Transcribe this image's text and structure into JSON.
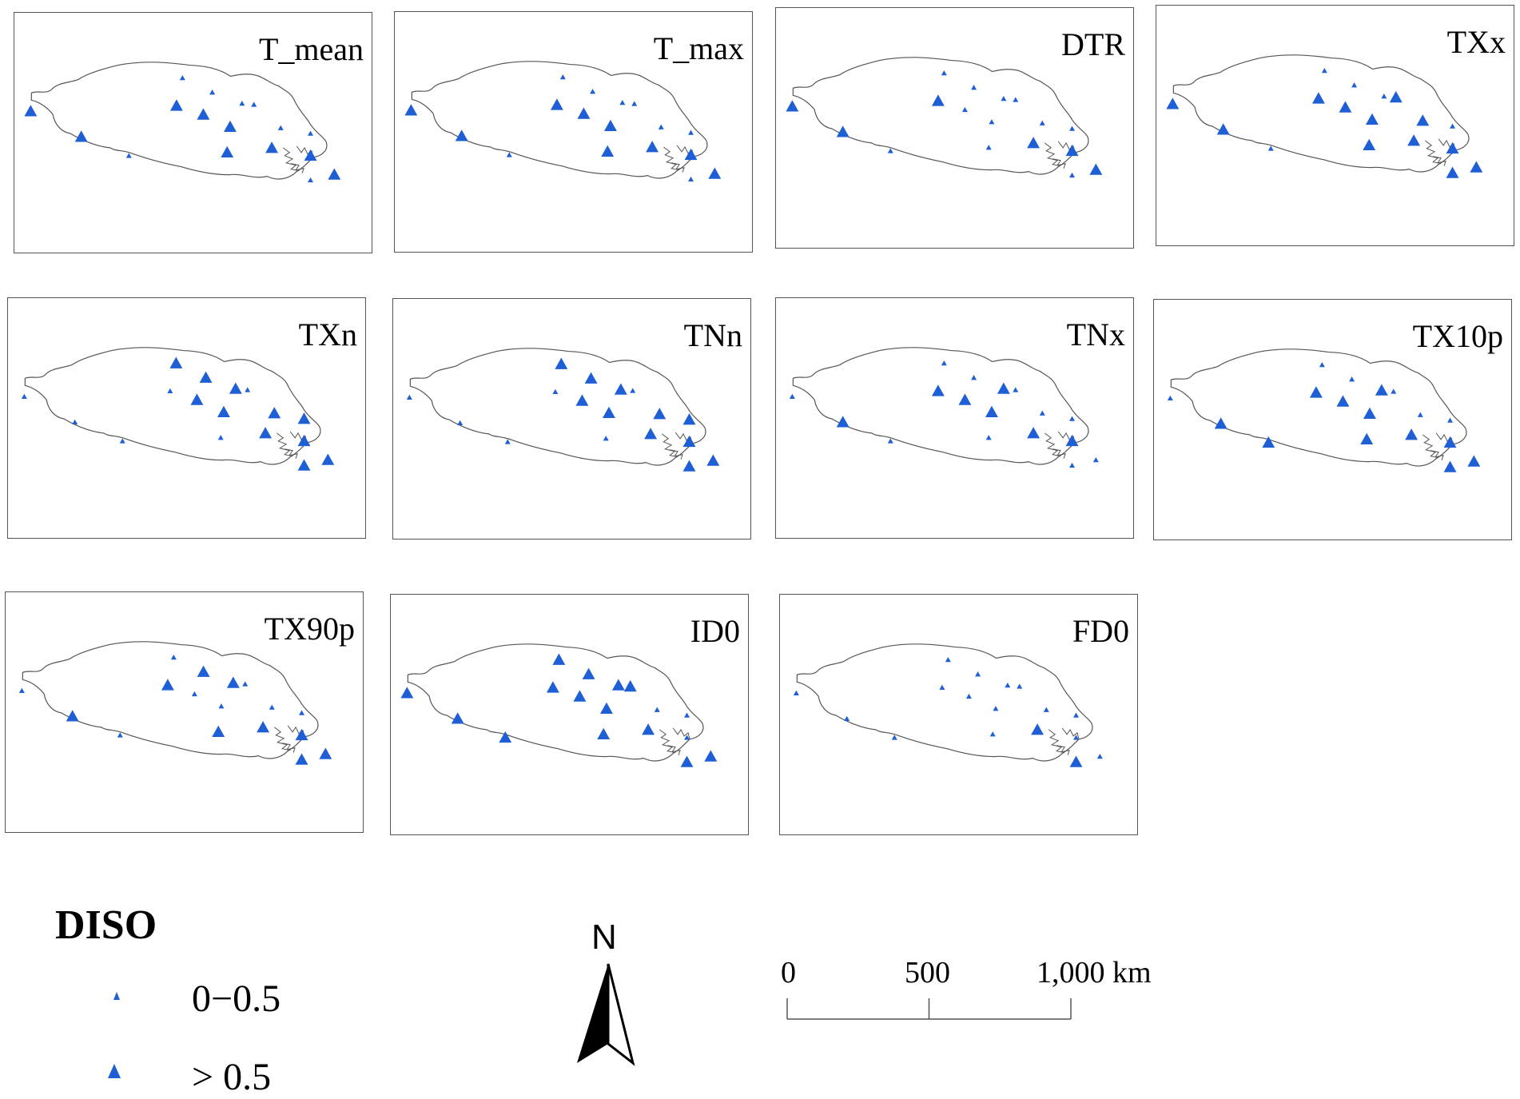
{
  "panels": [
    {
      "title": "T_mean",
      "stations": [
        {
          "lon": 0.0,
          "lat": 0.35,
          "diso": "high"
        },
        {
          "lon": 0.17,
          "lat": 0.58,
          "diso": "high"
        },
        {
          "lon": 0.33,
          "lat": 0.75,
          "diso": "low"
        },
        {
          "lon": 0.49,
          "lat": 0.3,
          "diso": "high"
        },
        {
          "lon": 0.51,
          "lat": 0.05,
          "diso": "low"
        },
        {
          "lon": 0.58,
          "lat": 0.38,
          "diso": "high"
        },
        {
          "lon": 0.61,
          "lat": 0.18,
          "diso": "low"
        },
        {
          "lon": 0.66,
          "lat": 0.72,
          "diso": "high"
        },
        {
          "lon": 0.67,
          "lat": 0.49,
          "diso": "high"
        },
        {
          "lon": 0.71,
          "lat": 0.28,
          "diso": "low"
        },
        {
          "lon": 0.75,
          "lat": 0.29,
          "diso": "low"
        },
        {
          "lon": 0.81,
          "lat": 0.68,
          "diso": "high"
        },
        {
          "lon": 0.84,
          "lat": 0.5,
          "diso": "low"
        },
        {
          "lon": 0.94,
          "lat": 0.55,
          "diso": "low"
        },
        {
          "lon": 0.94,
          "lat": 0.75,
          "diso": "high"
        },
        {
          "lon": 0.94,
          "lat": 0.97,
          "diso": "low"
        },
        {
          "lon": 1.02,
          "lat": 0.92,
          "diso": "high"
        }
      ]
    },
    {
      "title": "T_max",
      "stations": [
        {
          "lon": 0.0,
          "lat": 0.35,
          "diso": "high"
        },
        {
          "lon": 0.17,
          "lat": 0.58,
          "diso": "high"
        },
        {
          "lon": 0.33,
          "lat": 0.75,
          "diso": "low"
        },
        {
          "lon": 0.49,
          "lat": 0.3,
          "diso": "high"
        },
        {
          "lon": 0.51,
          "lat": 0.05,
          "diso": "low"
        },
        {
          "lon": 0.58,
          "lat": 0.38,
          "diso": "high"
        },
        {
          "lon": 0.61,
          "lat": 0.18,
          "diso": "low"
        },
        {
          "lon": 0.66,
          "lat": 0.72,
          "diso": "high"
        },
        {
          "lon": 0.67,
          "lat": 0.49,
          "diso": "high"
        },
        {
          "lon": 0.71,
          "lat": 0.28,
          "diso": "low"
        },
        {
          "lon": 0.75,
          "lat": 0.29,
          "diso": "low"
        },
        {
          "lon": 0.81,
          "lat": 0.68,
          "diso": "high"
        },
        {
          "lon": 0.84,
          "lat": 0.5,
          "diso": "low"
        },
        {
          "lon": 0.94,
          "lat": 0.55,
          "diso": "low"
        },
        {
          "lon": 0.94,
          "lat": 0.75,
          "diso": "high"
        },
        {
          "lon": 0.94,
          "lat": 0.97,
          "diso": "low"
        },
        {
          "lon": 1.02,
          "lat": 0.92,
          "diso": "high"
        }
      ]
    },
    {
      "title": "DTR",
      "stations": [
        {
          "lon": 0.0,
          "lat": 0.35,
          "diso": "high"
        },
        {
          "lon": 0.17,
          "lat": 0.58,
          "diso": "high"
        },
        {
          "lon": 0.33,
          "lat": 0.75,
          "diso": "low"
        },
        {
          "lon": 0.49,
          "lat": 0.3,
          "diso": "high"
        },
        {
          "lon": 0.51,
          "lat": 0.05,
          "diso": "low"
        },
        {
          "lon": 0.58,
          "lat": 0.38,
          "diso": "low"
        },
        {
          "lon": 0.61,
          "lat": 0.18,
          "diso": "low"
        },
        {
          "lon": 0.66,
          "lat": 0.72,
          "diso": "low"
        },
        {
          "lon": 0.67,
          "lat": 0.49,
          "diso": "low"
        },
        {
          "lon": 0.71,
          "lat": 0.28,
          "diso": "low"
        },
        {
          "lon": 0.75,
          "lat": 0.29,
          "diso": "low"
        },
        {
          "lon": 0.81,
          "lat": 0.68,
          "diso": "high"
        },
        {
          "lon": 0.84,
          "lat": 0.5,
          "diso": "low"
        },
        {
          "lon": 0.94,
          "lat": 0.55,
          "diso": "low"
        },
        {
          "lon": 0.94,
          "lat": 0.75,
          "diso": "high"
        },
        {
          "lon": 0.94,
          "lat": 0.97,
          "diso": "low"
        },
        {
          "lon": 1.02,
          "lat": 0.92,
          "diso": "high"
        }
      ]
    },
    {
      "title": "TXx",
      "stations": [
        {
          "lon": 0.0,
          "lat": 0.35,
          "diso": "high"
        },
        {
          "lon": 0.17,
          "lat": 0.58,
          "diso": "high"
        },
        {
          "lon": 0.33,
          "lat": 0.75,
          "diso": "low"
        },
        {
          "lon": 0.49,
          "lat": 0.3,
          "diso": "high"
        },
        {
          "lon": 0.51,
          "lat": 0.05,
          "diso": "low"
        },
        {
          "lon": 0.58,
          "lat": 0.38,
          "diso": "high"
        },
        {
          "lon": 0.61,
          "lat": 0.18,
          "diso": "low"
        },
        {
          "lon": 0.66,
          "lat": 0.72,
          "diso": "high"
        },
        {
          "lon": 0.67,
          "lat": 0.49,
          "diso": "high"
        },
        {
          "lon": 0.71,
          "lat": 0.28,
          "diso": "low"
        },
        {
          "lon": 0.75,
          "lat": 0.29,
          "diso": "high"
        },
        {
          "lon": 0.81,
          "lat": 0.68,
          "diso": "high"
        },
        {
          "lon": 0.84,
          "lat": 0.5,
          "diso": "high"
        },
        {
          "lon": 0.94,
          "lat": 0.55,
          "diso": "low"
        },
        {
          "lon": 0.94,
          "lat": 0.75,
          "diso": "high"
        },
        {
          "lon": 0.94,
          "lat": 0.97,
          "diso": "high"
        },
        {
          "lon": 1.02,
          "lat": 0.92,
          "diso": "high"
        }
      ]
    },
    {
      "title": "TXn",
      "stations": [
        {
          "lon": 0.0,
          "lat": 0.35,
          "diso": "low"
        },
        {
          "lon": 0.17,
          "lat": 0.58,
          "diso": "low"
        },
        {
          "lon": 0.33,
          "lat": 0.75,
          "diso": "low"
        },
        {
          "lon": 0.49,
          "lat": 0.3,
          "diso": "low"
        },
        {
          "lon": 0.51,
          "lat": 0.05,
          "diso": "high"
        },
        {
          "lon": 0.58,
          "lat": 0.38,
          "diso": "high"
        },
        {
          "lon": 0.61,
          "lat": 0.18,
          "diso": "high"
        },
        {
          "lon": 0.66,
          "lat": 0.72,
          "diso": "low"
        },
        {
          "lon": 0.67,
          "lat": 0.49,
          "diso": "high"
        },
        {
          "lon": 0.71,
          "lat": 0.28,
          "diso": "high"
        },
        {
          "lon": 0.75,
          "lat": 0.29,
          "diso": "low"
        },
        {
          "lon": 0.81,
          "lat": 0.68,
          "diso": "high"
        },
        {
          "lon": 0.84,
          "lat": 0.5,
          "diso": "high"
        },
        {
          "lon": 0.94,
          "lat": 0.55,
          "diso": "high"
        },
        {
          "lon": 0.94,
          "lat": 0.75,
          "diso": "high"
        },
        {
          "lon": 0.94,
          "lat": 0.97,
          "diso": "high"
        },
        {
          "lon": 1.02,
          "lat": 0.92,
          "diso": "high"
        }
      ]
    },
    {
      "title": "TNn",
      "stations": [
        {
          "lon": 0.0,
          "lat": 0.35,
          "diso": "low"
        },
        {
          "lon": 0.17,
          "lat": 0.58,
          "diso": "low"
        },
        {
          "lon": 0.33,
          "lat": 0.75,
          "diso": "low"
        },
        {
          "lon": 0.49,
          "lat": 0.3,
          "diso": "low"
        },
        {
          "lon": 0.51,
          "lat": 0.05,
          "diso": "high"
        },
        {
          "lon": 0.58,
          "lat": 0.38,
          "diso": "high"
        },
        {
          "lon": 0.61,
          "lat": 0.18,
          "diso": "high"
        },
        {
          "lon": 0.66,
          "lat": 0.72,
          "diso": "low"
        },
        {
          "lon": 0.67,
          "lat": 0.49,
          "diso": "high"
        },
        {
          "lon": 0.71,
          "lat": 0.28,
          "diso": "high"
        },
        {
          "lon": 0.75,
          "lat": 0.29,
          "diso": "low"
        },
        {
          "lon": 0.81,
          "lat": 0.68,
          "diso": "high"
        },
        {
          "lon": 0.84,
          "lat": 0.5,
          "diso": "high"
        },
        {
          "lon": 0.94,
          "lat": 0.55,
          "diso": "high"
        },
        {
          "lon": 0.94,
          "lat": 0.75,
          "diso": "high"
        },
        {
          "lon": 0.94,
          "lat": 0.97,
          "diso": "high"
        },
        {
          "lon": 1.02,
          "lat": 0.92,
          "diso": "high"
        }
      ]
    },
    {
      "title": "TNx",
      "stations": [
        {
          "lon": 0.0,
          "lat": 0.35,
          "diso": "low"
        },
        {
          "lon": 0.17,
          "lat": 0.58,
          "diso": "high"
        },
        {
          "lon": 0.33,
          "lat": 0.75,
          "diso": "low"
        },
        {
          "lon": 0.49,
          "lat": 0.3,
          "diso": "high"
        },
        {
          "lon": 0.51,
          "lat": 0.05,
          "diso": "low"
        },
        {
          "lon": 0.58,
          "lat": 0.38,
          "diso": "high"
        },
        {
          "lon": 0.61,
          "lat": 0.18,
          "diso": "low"
        },
        {
          "lon": 0.66,
          "lat": 0.72,
          "diso": "low"
        },
        {
          "lon": 0.67,
          "lat": 0.49,
          "diso": "high"
        },
        {
          "lon": 0.71,
          "lat": 0.28,
          "diso": "high"
        },
        {
          "lon": 0.75,
          "lat": 0.29,
          "diso": "low"
        },
        {
          "lon": 0.81,
          "lat": 0.68,
          "diso": "high"
        },
        {
          "lon": 0.84,
          "lat": 0.5,
          "diso": "low"
        },
        {
          "lon": 0.94,
          "lat": 0.55,
          "diso": "low"
        },
        {
          "lon": 0.94,
          "lat": 0.75,
          "diso": "high"
        },
        {
          "lon": 0.94,
          "lat": 0.97,
          "diso": "low"
        },
        {
          "lon": 1.02,
          "lat": 0.92,
          "diso": "low"
        }
      ]
    },
    {
      "title": "TX10p",
      "stations": [
        {
          "lon": 0.0,
          "lat": 0.35,
          "diso": "low"
        },
        {
          "lon": 0.17,
          "lat": 0.58,
          "diso": "high"
        },
        {
          "lon": 0.33,
          "lat": 0.75,
          "diso": "high"
        },
        {
          "lon": 0.49,
          "lat": 0.3,
          "diso": "high"
        },
        {
          "lon": 0.51,
          "lat": 0.05,
          "diso": "low"
        },
        {
          "lon": 0.58,
          "lat": 0.38,
          "diso": "high"
        },
        {
          "lon": 0.61,
          "lat": 0.18,
          "diso": "low"
        },
        {
          "lon": 0.66,
          "lat": 0.72,
          "diso": "high"
        },
        {
          "lon": 0.67,
          "lat": 0.49,
          "diso": "high"
        },
        {
          "lon": 0.71,
          "lat": 0.28,
          "diso": "high"
        },
        {
          "lon": 0.75,
          "lat": 0.29,
          "diso": "low"
        },
        {
          "lon": 0.81,
          "lat": 0.68,
          "diso": "high"
        },
        {
          "lon": 0.84,
          "lat": 0.5,
          "diso": "low"
        },
        {
          "lon": 0.94,
          "lat": 0.55,
          "diso": "low"
        },
        {
          "lon": 0.94,
          "lat": 0.75,
          "diso": "high"
        },
        {
          "lon": 0.94,
          "lat": 0.97,
          "diso": "high"
        },
        {
          "lon": 1.02,
          "lat": 0.92,
          "diso": "high"
        }
      ]
    },
    {
      "title": "TX90p",
      "stations": [
        {
          "lon": 0.0,
          "lat": 0.35,
          "diso": "low"
        },
        {
          "lon": 0.17,
          "lat": 0.58,
          "diso": "high"
        },
        {
          "lon": 0.33,
          "lat": 0.75,
          "diso": "low"
        },
        {
          "lon": 0.49,
          "lat": 0.3,
          "diso": "high"
        },
        {
          "lon": 0.51,
          "lat": 0.05,
          "diso": "low"
        },
        {
          "lon": 0.58,
          "lat": 0.38,
          "diso": "low"
        },
        {
          "lon": 0.61,
          "lat": 0.18,
          "diso": "high"
        },
        {
          "lon": 0.66,
          "lat": 0.72,
          "diso": "high"
        },
        {
          "lon": 0.67,
          "lat": 0.49,
          "diso": "low"
        },
        {
          "lon": 0.71,
          "lat": 0.28,
          "diso": "high"
        },
        {
          "lon": 0.75,
          "lat": 0.29,
          "diso": "low"
        },
        {
          "lon": 0.81,
          "lat": 0.68,
          "diso": "high"
        },
        {
          "lon": 0.84,
          "lat": 0.5,
          "diso": "low"
        },
        {
          "lon": 0.94,
          "lat": 0.55,
          "diso": "low"
        },
        {
          "lon": 0.94,
          "lat": 0.75,
          "diso": "high"
        },
        {
          "lon": 0.94,
          "lat": 0.97,
          "diso": "high"
        },
        {
          "lon": 1.02,
          "lat": 0.92,
          "diso": "high"
        }
      ]
    },
    {
      "title": "ID0",
      "stations": [
        {
          "lon": 0.0,
          "lat": 0.35,
          "diso": "high"
        },
        {
          "lon": 0.17,
          "lat": 0.58,
          "diso": "high"
        },
        {
          "lon": 0.33,
          "lat": 0.75,
          "diso": "high"
        },
        {
          "lon": 0.49,
          "lat": 0.3,
          "diso": "high"
        },
        {
          "lon": 0.51,
          "lat": 0.05,
          "diso": "high"
        },
        {
          "lon": 0.58,
          "lat": 0.38,
          "diso": "high"
        },
        {
          "lon": 0.61,
          "lat": 0.18,
          "diso": "high"
        },
        {
          "lon": 0.66,
          "lat": 0.72,
          "diso": "high"
        },
        {
          "lon": 0.67,
          "lat": 0.49,
          "diso": "high"
        },
        {
          "lon": 0.71,
          "lat": 0.28,
          "diso": "high"
        },
        {
          "lon": 0.75,
          "lat": 0.29,
          "diso": "high"
        },
        {
          "lon": 0.81,
          "lat": 0.68,
          "diso": "high"
        },
        {
          "lon": 0.84,
          "lat": 0.5,
          "diso": "low"
        },
        {
          "lon": 0.94,
          "lat": 0.55,
          "diso": "low"
        },
        {
          "lon": 0.94,
          "lat": 0.75,
          "diso": "low"
        },
        {
          "lon": 0.94,
          "lat": 0.97,
          "diso": "high"
        },
        {
          "lon": 1.02,
          "lat": 0.92,
          "diso": "high"
        }
      ]
    },
    {
      "title": "FD0",
      "stations": [
        {
          "lon": 0.0,
          "lat": 0.35,
          "diso": "low"
        },
        {
          "lon": 0.17,
          "lat": 0.58,
          "diso": "low"
        },
        {
          "lon": 0.33,
          "lat": 0.75,
          "diso": "low"
        },
        {
          "lon": 0.49,
          "lat": 0.3,
          "diso": "low"
        },
        {
          "lon": 0.51,
          "lat": 0.05,
          "diso": "low"
        },
        {
          "lon": 0.58,
          "lat": 0.38,
          "diso": "low"
        },
        {
          "lon": 0.61,
          "lat": 0.18,
          "diso": "low"
        },
        {
          "lon": 0.66,
          "lat": 0.72,
          "diso": "low"
        },
        {
          "lon": 0.67,
          "lat": 0.49,
          "diso": "low"
        },
        {
          "lon": 0.71,
          "lat": 0.28,
          "diso": "low"
        },
        {
          "lon": 0.75,
          "lat": 0.29,
          "diso": "low"
        },
        {
          "lon": 0.81,
          "lat": 0.68,
          "diso": "high"
        },
        {
          "lon": 0.84,
          "lat": 0.5,
          "diso": "low"
        },
        {
          "lon": 0.94,
          "lat": 0.55,
          "diso": "low"
        },
        {
          "lon": 0.94,
          "lat": 0.75,
          "diso": "low"
        },
        {
          "lon": 0.94,
          "lat": 0.97,
          "diso": "high"
        },
        {
          "lon": 1.02,
          "lat": 0.92,
          "diso": "low"
        }
      ]
    }
  ],
  "legend": {
    "title": "DISO",
    "items": [
      {
        "label": "0−0.5",
        "class": "low"
      },
      {
        "label": "> 0.5",
        "class": "high"
      }
    ]
  },
  "north_arrow": {
    "label": "N"
  },
  "scale_bar": {
    "labels": [
      "0",
      "500",
      "1,000 km"
    ],
    "values_km": [
      0,
      500,
      1000
    ]
  },
  "colors": {
    "marker": "#1f5fd6",
    "outline": "#555555"
  }
}
